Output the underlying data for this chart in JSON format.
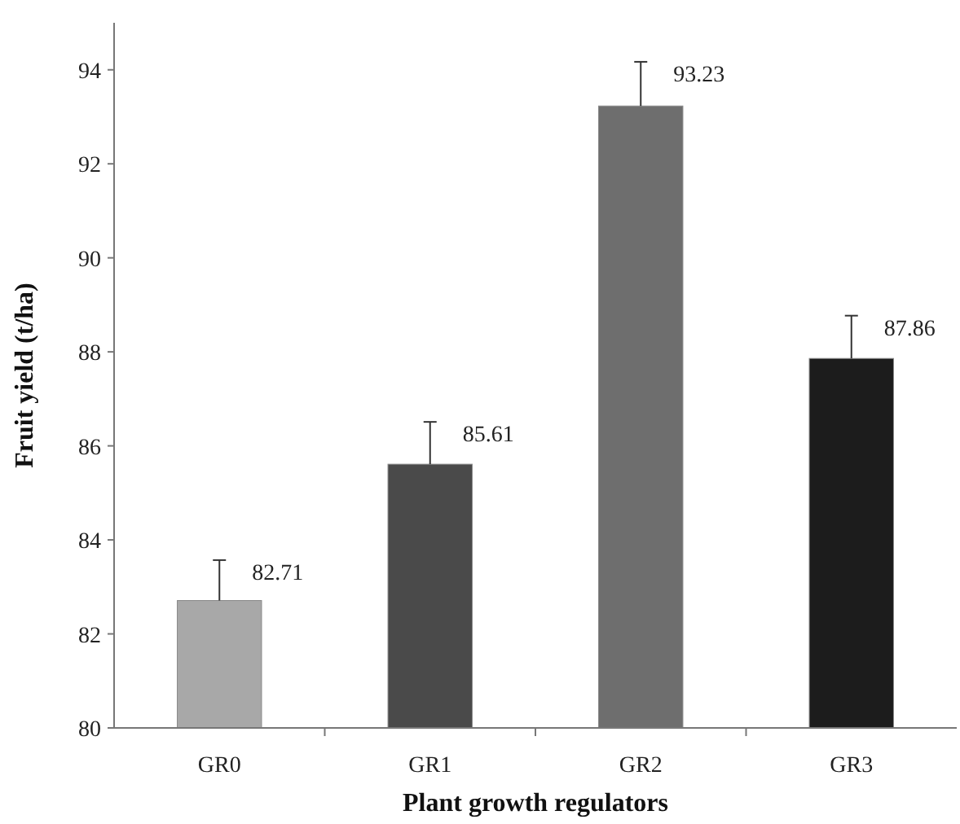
{
  "chart_data": {
    "type": "bar",
    "xlabel": "Plant growth regulators",
    "ylabel": "Fruit yield (t/ha)",
    "categories": [
      "GR0",
      "GR1",
      "GR2",
      "GR3"
    ],
    "values": [
      82.71,
      85.61,
      93.23,
      87.86
    ],
    "colors": [
      "#a8a8a8",
      "#4a4a4a",
      "#6e6e6e",
      "#1c1c1c"
    ],
    "errors": [
      [
        82.71,
        83.57
      ],
      [
        85.61,
        86.51
      ],
      [
        93.23,
        94.17
      ],
      [
        87.86,
        88.77
      ]
    ],
    "ylim": [
      80,
      95
    ],
    "yticks": [
      80,
      82,
      84,
      86,
      88,
      90,
      92,
      94
    ],
    "data_labels": true,
    "grid": false
  }
}
